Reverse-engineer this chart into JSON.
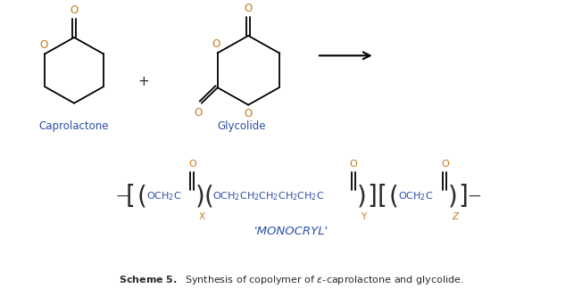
{
  "background_color": "#ffffff",
  "text_color_dark": "#2a2a2a",
  "text_color_blue": "#2b4da8",
  "text_color_orange": "#c47a1e",
  "caprolactone_label": "Caprolactone",
  "glycolide_label": "Glycolide",
  "monocryl_label": "'MONOCRYL'",
  "scheme_bold": "Scheme 5.",
  "scheme_normal": "  Synthesis of copolymer of ε-caprolactone and glycolide."
}
